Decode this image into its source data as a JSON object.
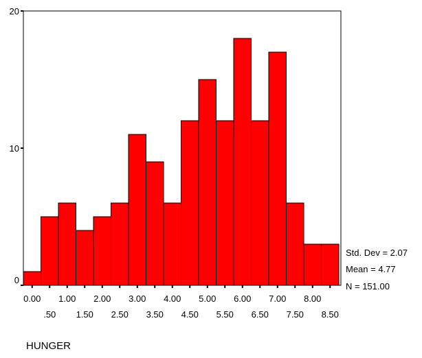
{
  "chart_data": {
    "type": "bar",
    "subtype": "histogram",
    "title": "",
    "xlabel": "HUNGER",
    "ylabel": "",
    "bin_width": 0.5,
    "bin_centers": [
      0.0,
      0.5,
      1.0,
      1.5,
      2.0,
      2.5,
      3.0,
      3.5,
      4.0,
      4.5,
      5.0,
      5.5,
      6.0,
      6.5,
      7.0,
      7.5,
      8.0,
      8.5
    ],
    "values": [
      1,
      5,
      6,
      4,
      5,
      6,
      11,
      9,
      6,
      12,
      15,
      12,
      18,
      12,
      17,
      6,
      3,
      3
    ],
    "xtick_labels_row1": [
      "0.00",
      "1.00",
      "2.00",
      "3.00",
      "4.00",
      "5.00",
      "6.00",
      "7.00",
      "8.00"
    ],
    "xtick_labels_row2": [
      ".50",
      "1.50",
      "2.50",
      "3.50",
      "4.50",
      "5.50",
      "6.50",
      "7.50",
      "8.50"
    ],
    "ytick_labels": [
      "0",
      "10",
      "20"
    ],
    "yticks": [
      0,
      10,
      20
    ],
    "ylim": [
      0,
      20
    ],
    "grid": false,
    "bar_color": "#ff0000",
    "stats": [
      "Std. Dev = 2.07",
      "Mean = 4.77",
      "N = 151.00"
    ]
  }
}
